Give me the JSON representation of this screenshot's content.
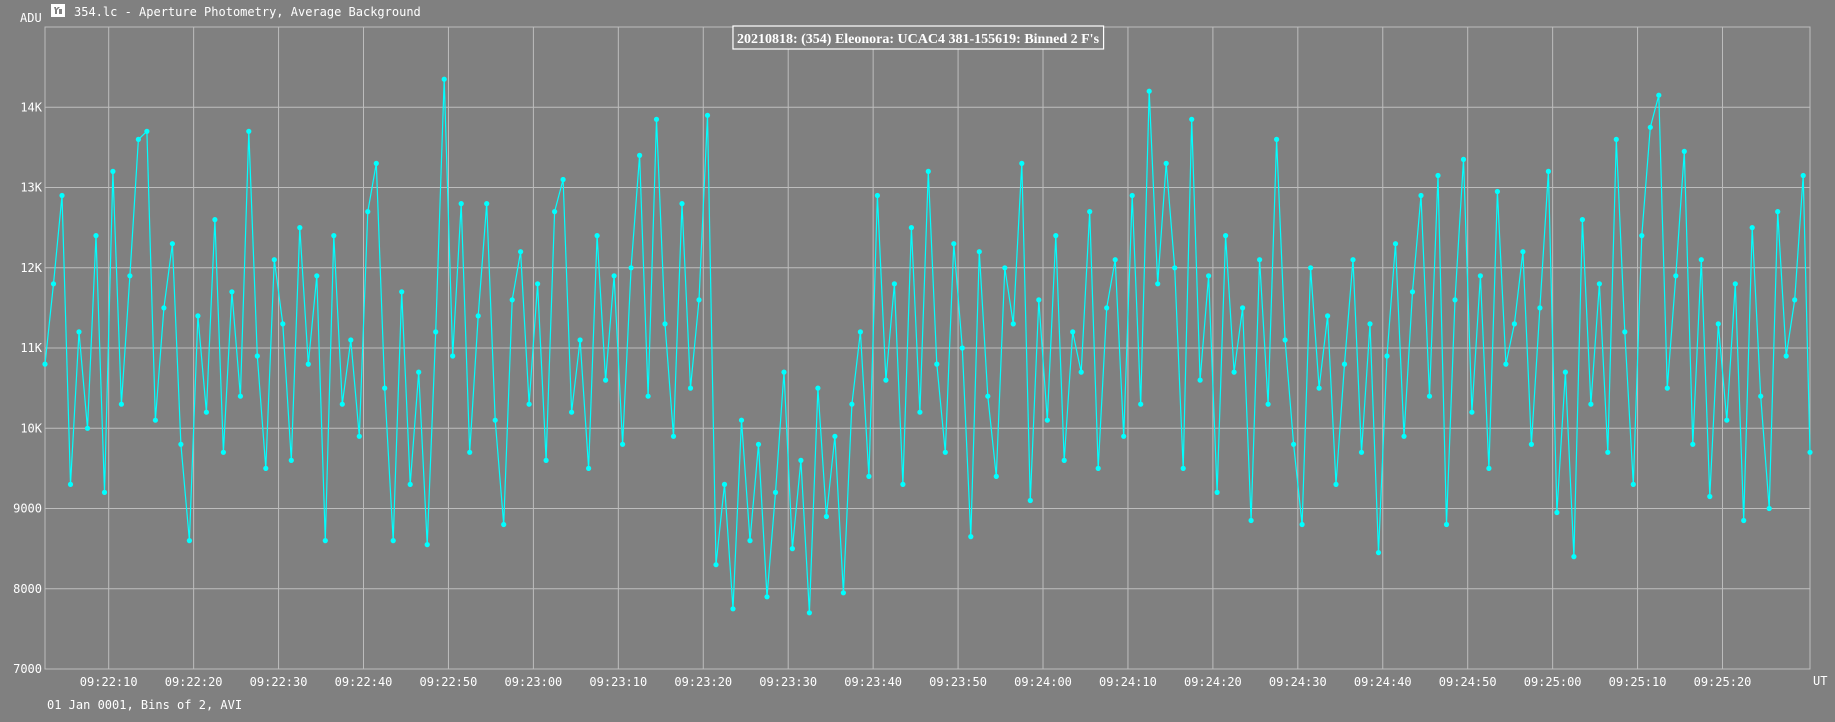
{
  "window": {
    "icon": "lightcurve-app-icon",
    "title": "354.lc - Aperture Photometry, Average Background"
  },
  "footer": {
    "text": "01 Jan 0001, Bins of 2, AVI"
  },
  "colors": {
    "background": "#808080",
    "grid": "#bdbdbd",
    "series": "#00ffff",
    "text": "#ffffff"
  },
  "chart_data": {
    "type": "line",
    "title": "20210818: (354) Eleonora: UCAC4 381-155619: Binned 2 F's",
    "ylabel": "ADU",
    "xlabel": "UT",
    "ylim": [
      7000,
      15000
    ],
    "xlim": [
      "09:22:02.5",
      "09:25:30.3"
    ],
    "grid": true,
    "marker": "dot",
    "yticks": [
      {
        "value": 7000,
        "label": "7000"
      },
      {
        "value": 8000,
        "label": "8000"
      },
      {
        "value": 9000,
        "label": "9000"
      },
      {
        "value": 10000,
        "label": "10K"
      },
      {
        "value": 11000,
        "label": "11K"
      },
      {
        "value": 12000,
        "label": "12K"
      },
      {
        "value": 13000,
        "label": "13K"
      },
      {
        "value": 14000,
        "label": "14K"
      }
    ],
    "xticks": [
      "09:22:10",
      "09:22:20",
      "09:22:30",
      "09:22:40",
      "09:22:50",
      "09:23:00",
      "09:23:10",
      "09:23:20",
      "09:23:30",
      "09:23:40",
      "09:23:50",
      "09:24:00",
      "09:24:10",
      "09:24:20",
      "09:24:30",
      "09:24:40",
      "09:24:50",
      "09:25:00",
      "09:25:10",
      "09:25:20"
    ],
    "series": [
      {
        "points": [
          [
            "09:22:02.5",
            10800
          ],
          [
            "09:22:03.5",
            11800
          ],
          [
            "09:22:04.5",
            12900
          ],
          [
            "09:22:05.5",
            9300
          ],
          [
            "09:22:06.5",
            11200
          ],
          [
            "09:22:07.5",
            10000
          ],
          [
            "09:22:08.5",
            12400
          ],
          [
            "09:22:09.5",
            9200
          ],
          [
            "09:22:10.5",
            13200
          ],
          [
            "09:22:11.5",
            10300
          ],
          [
            "09:22:12.5",
            11900
          ],
          [
            "09:22:13.5",
            13600
          ],
          [
            "09:22:14.5",
            13700
          ],
          [
            "09:22:15.5",
            10100
          ],
          [
            "09:22:16.5",
            11500
          ],
          [
            "09:22:17.5",
            12300
          ],
          [
            "09:22:18.5",
            9800
          ],
          [
            "09:22:19.5",
            8600
          ],
          [
            "09:22:20.5",
            11400
          ],
          [
            "09:22:21.5",
            10200
          ],
          [
            "09:22:22.5",
            12600
          ],
          [
            "09:22:23.5",
            9700
          ],
          [
            "09:22:24.5",
            11700
          ],
          [
            "09:22:25.5",
            10400
          ],
          [
            "09:22:26.5",
            13700
          ],
          [
            "09:22:27.5",
            10900
          ],
          [
            "09:22:28.5",
            9500
          ],
          [
            "09:22:29.5",
            12100
          ],
          [
            "09:22:30.5",
            11300
          ],
          [
            "09:22:31.5",
            9600
          ],
          [
            "09:22:32.5",
            12500
          ],
          [
            "09:22:33.5",
            10800
          ],
          [
            "09:22:34.5",
            11900
          ],
          [
            "09:22:35.5",
            8600
          ],
          [
            "09:22:36.5",
            12400
          ],
          [
            "09:22:37.5",
            10300
          ],
          [
            "09:22:38.5",
            11100
          ],
          [
            "09:22:39.5",
            9900
          ],
          [
            "09:22:40.5",
            12700
          ],
          [
            "09:22:41.5",
            13300
          ],
          [
            "09:22:42.5",
            10500
          ],
          [
            "09:22:43.5",
            8600
          ],
          [
            "09:22:44.5",
            11700
          ],
          [
            "09:22:45.5",
            9300
          ],
          [
            "09:22:46.5",
            10700
          ],
          [
            "09:22:47.5",
            8550
          ],
          [
            "09:22:48.5",
            11200
          ],
          [
            "09:22:49.5",
            14350
          ],
          [
            "09:22:50.5",
            10900
          ],
          [
            "09:22:51.5",
            12800
          ],
          [
            "09:22:52.5",
            9700
          ],
          [
            "09:22:53.5",
            11400
          ],
          [
            "09:22:54.5",
            12800
          ],
          [
            "09:22:55.5",
            10100
          ],
          [
            "09:22:56.5",
            8800
          ],
          [
            "09:22:57.5",
            11600
          ],
          [
            "09:22:58.5",
            12200
          ],
          [
            "09:22:59.5",
            10300
          ],
          [
            "09:23:00.5",
            11800
          ],
          [
            "09:23:01.5",
            9600
          ],
          [
            "09:23:02.5",
            12700
          ],
          [
            "09:23:03.5",
            13100
          ],
          [
            "09:23:04.5",
            10200
          ],
          [
            "09:23:05.5",
            11100
          ],
          [
            "09:23:06.5",
            9500
          ],
          [
            "09:23:07.5",
            12400
          ],
          [
            "09:23:08.5",
            10600
          ],
          [
            "09:23:09.5",
            11900
          ],
          [
            "09:23:10.5",
            9800
          ],
          [
            "09:23:11.5",
            12000
          ],
          [
            "09:23:12.5",
            13400
          ],
          [
            "09:23:13.5",
            10400
          ],
          [
            "09:23:14.5",
            13850
          ],
          [
            "09:23:15.5",
            11300
          ],
          [
            "09:23:16.5",
            9900
          ],
          [
            "09:23:17.5",
            12800
          ],
          [
            "09:23:18.5",
            10500
          ],
          [
            "09:23:19.5",
            11600
          ],
          [
            "09:23:20.5",
            13900
          ],
          [
            "09:23:21.5",
            8300
          ],
          [
            "09:23:22.5",
            9300
          ],
          [
            "09:23:23.5",
            7750
          ],
          [
            "09:23:24.5",
            10100
          ],
          [
            "09:23:25.5",
            8600
          ],
          [
            "09:23:26.5",
            9800
          ],
          [
            "09:23:27.5",
            7900
          ],
          [
            "09:23:28.5",
            9200
          ],
          [
            "09:23:29.5",
            10700
          ],
          [
            "09:23:30.5",
            8500
          ],
          [
            "09:23:31.5",
            9600
          ],
          [
            "09:23:32.5",
            7700
          ],
          [
            "09:23:33.5",
            10500
          ],
          [
            "09:23:34.5",
            8900
          ],
          [
            "09:23:35.5",
            9900
          ],
          [
            "09:23:36.5",
            7950
          ],
          [
            "09:23:37.5",
            10300
          ],
          [
            "09:23:38.5",
            11200
          ],
          [
            "09:23:39.5",
            9400
          ],
          [
            "09:23:40.5",
            12900
          ],
          [
            "09:23:41.5",
            10600
          ],
          [
            "09:23:42.5",
            11800
          ],
          [
            "09:23:43.5",
            9300
          ],
          [
            "09:23:44.5",
            12500
          ],
          [
            "09:23:45.5",
            10200
          ],
          [
            "09:23:46.5",
            13200
          ],
          [
            "09:23:47.5",
            10800
          ],
          [
            "09:23:48.5",
            9700
          ],
          [
            "09:23:49.5",
            12300
          ],
          [
            "09:23:50.5",
            11000
          ],
          [
            "09:23:51.5",
            8650
          ],
          [
            "09:23:52.5",
            12200
          ],
          [
            "09:23:53.5",
            10400
          ],
          [
            "09:23:54.5",
            9400
          ],
          [
            "09:23:55.5",
            12000
          ],
          [
            "09:23:56.5",
            11300
          ],
          [
            "09:23:57.5",
            13300
          ],
          [
            "09:23:58.5",
            9100
          ],
          [
            "09:23:59.5",
            11600
          ],
          [
            "09:24:00.5",
            10100
          ],
          [
            "09:24:01.5",
            12400
          ],
          [
            "09:24:02.5",
            9600
          ],
          [
            "09:24:03.5",
            11200
          ],
          [
            "09:24:04.5",
            10700
          ],
          [
            "09:24:05.5",
            12700
          ],
          [
            "09:24:06.5",
            9500
          ],
          [
            "09:24:07.5",
            11500
          ],
          [
            "09:24:08.5",
            12100
          ],
          [
            "09:24:09.5",
            9900
          ],
          [
            "09:24:10.5",
            12900
          ],
          [
            "09:24:11.5",
            10300
          ],
          [
            "09:24:12.5",
            14200
          ],
          [
            "09:24:13.5",
            11800
          ],
          [
            "09:24:14.5",
            13300
          ],
          [
            "09:24:15.5",
            12000
          ],
          [
            "09:24:16.5",
            9500
          ],
          [
            "09:24:17.5",
            13850
          ],
          [
            "09:24:18.5",
            10600
          ],
          [
            "09:24:19.5",
            11900
          ],
          [
            "09:24:20.5",
            9200
          ],
          [
            "09:24:21.5",
            12400
          ],
          [
            "09:24:22.5",
            10700
          ],
          [
            "09:24:23.5",
            11500
          ],
          [
            "09:24:24.5",
            8850
          ],
          [
            "09:24:25.5",
            12100
          ],
          [
            "09:24:26.5",
            10300
          ],
          [
            "09:24:27.5",
            13600
          ],
          [
            "09:24:28.5",
            11100
          ],
          [
            "09:24:29.5",
            9800
          ],
          [
            "09:24:30.5",
            8800
          ],
          [
            "09:24:31.5",
            12000
          ],
          [
            "09:24:32.5",
            10500
          ],
          [
            "09:24:33.5",
            11400
          ],
          [
            "09:24:34.5",
            9300
          ],
          [
            "09:24:35.5",
            10800
          ],
          [
            "09:24:36.5",
            12100
          ],
          [
            "09:24:37.5",
            9700
          ],
          [
            "09:24:38.5",
            11300
          ],
          [
            "09:24:39.5",
            8450
          ],
          [
            "09:24:40.5",
            10900
          ],
          [
            "09:24:41.5",
            12300
          ],
          [
            "09:24:42.5",
            9900
          ],
          [
            "09:24:43.5",
            11700
          ],
          [
            "09:24:44.5",
            12900
          ],
          [
            "09:24:45.5",
            10400
          ],
          [
            "09:24:46.5",
            13150
          ],
          [
            "09:24:47.5",
            8800
          ],
          [
            "09:24:48.5",
            11600
          ],
          [
            "09:24:49.5",
            13350
          ],
          [
            "09:24:50.5",
            10200
          ],
          [
            "09:24:51.5",
            11900
          ],
          [
            "09:24:52.5",
            9500
          ],
          [
            "09:24:53.5",
            12950
          ],
          [
            "09:24:54.5",
            10800
          ],
          [
            "09:24:55.5",
            11300
          ],
          [
            "09:24:56.5",
            12200
          ],
          [
            "09:24:57.5",
            9800
          ],
          [
            "09:24:58.5",
            11500
          ],
          [
            "09:24:59.5",
            13200
          ],
          [
            "09:25:00.5",
            8950
          ],
          [
            "09:25:01.5",
            10700
          ],
          [
            "09:25:02.5",
            8400
          ],
          [
            "09:25:03.5",
            12600
          ],
          [
            "09:25:04.5",
            10300
          ],
          [
            "09:25:05.5",
            11800
          ],
          [
            "09:25:06.5",
            9700
          ],
          [
            "09:25:07.5",
            13600
          ],
          [
            "09:25:08.5",
            11200
          ],
          [
            "09:25:09.5",
            9300
          ],
          [
            "09:25:10.5",
            12400
          ],
          [
            "09:25:11.5",
            13750
          ],
          [
            "09:25:12.5",
            14150
          ],
          [
            "09:25:13.5",
            10500
          ],
          [
            "09:25:14.5",
            11900
          ],
          [
            "09:25:15.5",
            13450
          ],
          [
            "09:25:16.5",
            9800
          ],
          [
            "09:25:17.5",
            12100
          ],
          [
            "09:25:18.5",
            9150
          ],
          [
            "09:25:19.5",
            11300
          ],
          [
            "09:25:20.5",
            10100
          ],
          [
            "09:25:21.5",
            11800
          ],
          [
            "09:25:22.5",
            8850
          ],
          [
            "09:25:23.5",
            12500
          ],
          [
            "09:25:24.5",
            10400
          ],
          [
            "09:25:25.5",
            9000
          ],
          [
            "09:25:26.5",
            12700
          ],
          [
            "09:25:27.5",
            10900
          ],
          [
            "09:25:28.5",
            11600
          ],
          [
            "09:25:29.5",
            13150
          ],
          [
            "09:25:30.3",
            9700
          ]
        ]
      }
    ]
  }
}
